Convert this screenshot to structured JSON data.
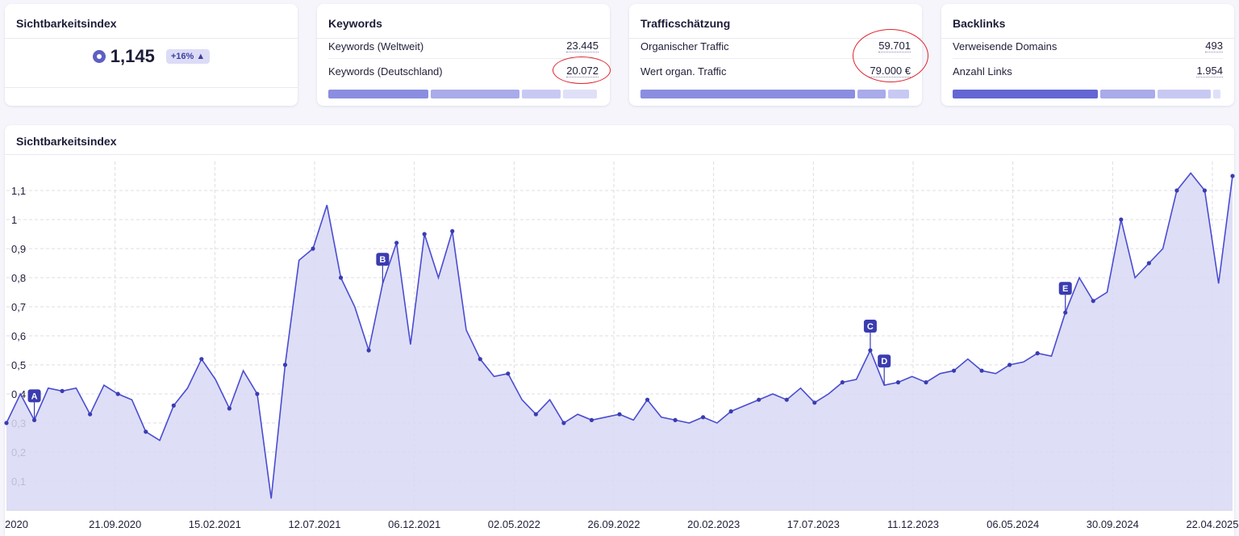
{
  "visibility_card": {
    "title": "Sichtbarkeitsindex",
    "value": "1,145",
    "change": "+16% ▲",
    "icon": "target-icon"
  },
  "keywords_card": {
    "title": "Keywords",
    "rows": [
      {
        "label": "Keywords (Weltweit)",
        "value": "23.445"
      },
      {
        "label": "Keywords (Deutschland)",
        "value": "20.072"
      }
    ]
  },
  "traffic_card": {
    "title": "Trafficschätzung",
    "rows": [
      {
        "label": "Organischer Traffic",
        "value": "59.701"
      },
      {
        "label": "Wert organ. Traffic",
        "value": "79.000 €"
      }
    ]
  },
  "backlinks_card": {
    "title": "Backlinks",
    "rows": [
      {
        "label": "Verweisende Domains",
        "value": "493"
      },
      {
        "label": "Anzahl Links",
        "value": "1.954"
      }
    ]
  },
  "colors": {
    "accent": "#5d5fc4",
    "area_fill": "#d8d8f4",
    "line": "#4a4cd0",
    "marker": "#3a3cb0",
    "highlight_circle": "#e0242f"
  },
  "chart_data": {
    "type": "area",
    "title": "Sichtbarkeitsindex",
    "xlabel": "",
    "ylabel": "",
    "ylim": [
      0,
      1.2
    ],
    "y_ticks": [
      "0,1",
      "0,2",
      "0,3",
      "0,4",
      "0,5",
      "0,6",
      "0,7",
      "0,8",
      "0,9",
      "1",
      "1,1"
    ],
    "x_ticks": [
      "2020",
      "21.09.2020",
      "15.02.2021",
      "12.07.2021",
      "06.12.2021",
      "02.05.2022",
      "26.09.2022",
      "20.02.2023",
      "17.07.2023",
      "11.12.2023",
      "06.05.2024",
      "30.09.2024",
      "22.04.2025"
    ],
    "grid": true,
    "x_index_range": [
      0,
      88
    ],
    "series": [
      {
        "x": [
          0,
          1,
          2,
          3,
          4,
          5,
          6,
          7,
          8,
          9,
          10,
          11,
          12,
          13,
          14,
          15,
          16,
          17,
          18,
          19,
          20,
          21,
          22,
          23,
          24,
          25,
          26,
          27,
          28,
          29,
          30,
          31,
          32,
          33,
          34,
          35,
          36,
          37,
          38,
          39,
          40,
          41,
          42,
          43,
          44,
          45,
          46,
          47,
          48,
          49,
          50,
          51,
          52,
          53,
          54,
          55,
          56,
          57,
          58,
          59,
          60,
          61,
          62,
          63,
          64,
          65,
          66,
          67,
          68,
          69,
          70,
          71,
          72,
          73,
          74,
          75,
          76,
          77,
          78,
          79,
          80,
          81,
          82,
          83,
          84,
          85,
          86,
          87,
          88
        ],
        "values": [
          0.3,
          0.4,
          0.31,
          0.42,
          0.41,
          0.42,
          0.33,
          0.43,
          0.4,
          0.38,
          0.27,
          0.24,
          0.36,
          0.42,
          0.52,
          0.45,
          0.35,
          0.48,
          0.4,
          0.04,
          0.5,
          0.86,
          0.9,
          1.05,
          0.8,
          0.7,
          0.55,
          0.78,
          0.92,
          0.57,
          0.95,
          0.8,
          0.96,
          0.62,
          0.52,
          0.46,
          0.47,
          0.38,
          0.33,
          0.38,
          0.3,
          0.33,
          0.31,
          0.32,
          0.33,
          0.31,
          0.38,
          0.32,
          0.31,
          0.3,
          0.32,
          0.3,
          0.34,
          0.36,
          0.38,
          0.4,
          0.38,
          0.42,
          0.37,
          0.4,
          0.44,
          0.45,
          0.55,
          0.43,
          0.44,
          0.46,
          0.44,
          0.47,
          0.48,
          0.52,
          0.48,
          0.47,
          0.5,
          0.51,
          0.54,
          0.53,
          0.68,
          0.8,
          0.72,
          0.75,
          1.0,
          0.8,
          0.85,
          0.9,
          1.1,
          1.16,
          1.1,
          0.78,
          1.15
        ],
        "markers": [
          {
            "label": "A",
            "x": 2
          },
          {
            "label": "B",
            "x": 27
          },
          {
            "label": "C",
            "x": 62
          },
          {
            "label": "D",
            "x": 63
          },
          {
            "label": "E",
            "x": 76
          }
        ]
      }
    ]
  }
}
